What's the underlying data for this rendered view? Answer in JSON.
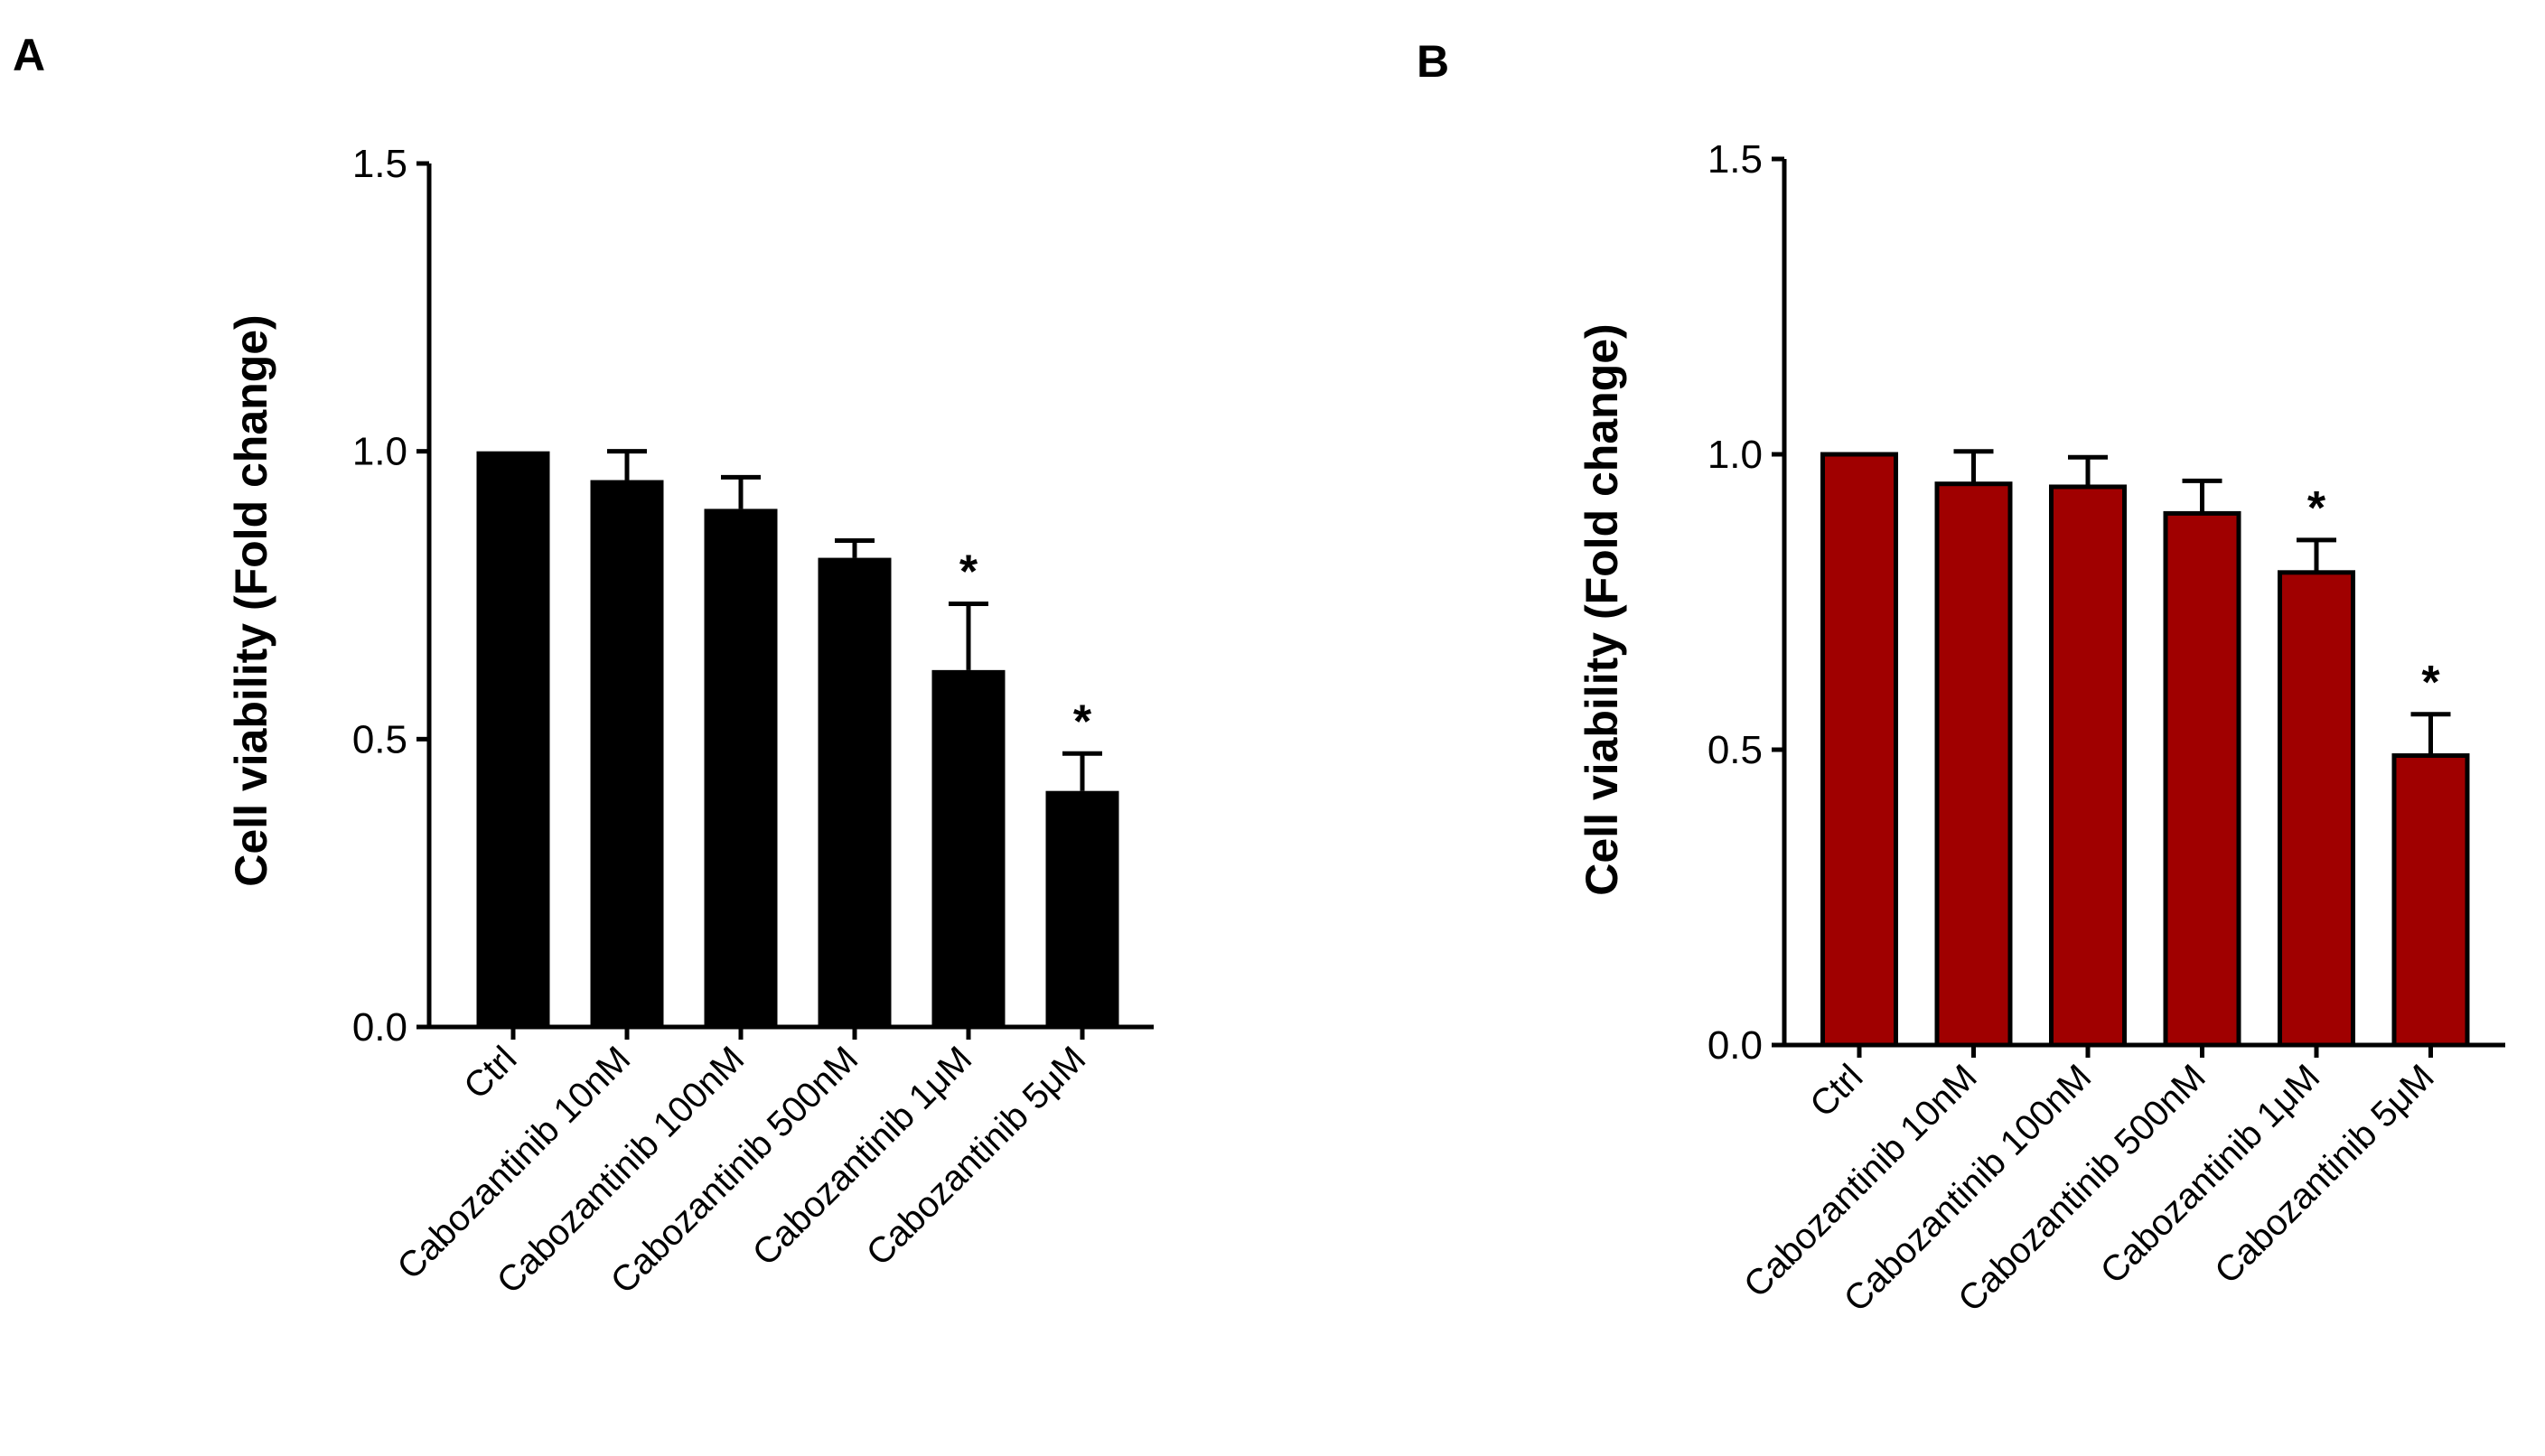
{
  "chart_data": [
    {
      "panel": "A",
      "type": "bar",
      "title": "",
      "xlabel": "",
      "ylabel": "Cell viability (Fold change)",
      "ylim": [
        0,
        1.5
      ],
      "yticks": [
        "0.0",
        "0.5",
        "1.0",
        "1.5"
      ],
      "bar_color": "#000000",
      "categories": [
        "Ctrl",
        "Cabozantinib 10nM",
        "Cabozantinib 100nM",
        "Cabozantinib 500nM",
        "Cabozantinib 1μM",
        "Cabozantinib 5μM"
      ],
      "values": [
        1.0,
        0.95,
        0.9,
        0.815,
        0.62,
        0.41
      ],
      "errors": [
        0.0,
        0.05,
        0.055,
        0.03,
        0.115,
        0.065
      ],
      "annotations": [
        "",
        "",
        "",
        "",
        "*",
        "*"
      ]
    },
    {
      "panel": "B",
      "type": "bar",
      "title": "",
      "xlabel": "",
      "ylabel": "Cell viability (Fold change)",
      "ylim": [
        0,
        1.5
      ],
      "yticks": [
        "0.0",
        "0.5",
        "1.0",
        "1.5"
      ],
      "bar_color": "#a00000",
      "categories": [
        "Ctrl",
        "Cabozantinib 10nM",
        "Cabozantinib 100nM",
        "Cabozantinib 500nM",
        "Cabozantinib 1μM",
        "Cabozantinib 5μM"
      ],
      "values": [
        1.0,
        0.95,
        0.945,
        0.9,
        0.8,
        0.49
      ],
      "errors": [
        0.0,
        0.055,
        0.05,
        0.055,
        0.055,
        0.07
      ],
      "annotations": [
        "",
        "",
        "",
        "",
        "*",
        "*"
      ]
    }
  ]
}
